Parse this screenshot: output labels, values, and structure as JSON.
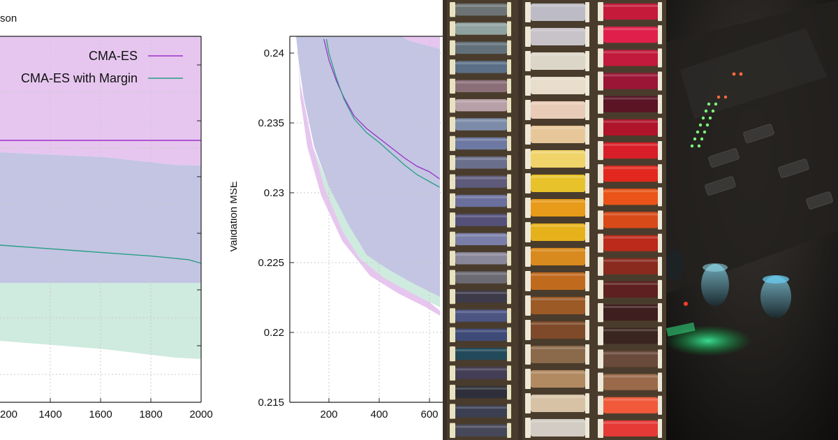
{
  "left_chart": {
    "title_fragment": "son",
    "legend": [
      {
        "label": "CMA-ES",
        "color": "#9b30c8"
      },
      {
        "label": "CMA-ES with Margin",
        "color": "#2a9d84"
      }
    ],
    "x_tick_labels": [
      "200",
      "1400",
      "1600",
      "1800",
      "2000"
    ],
    "colors": {
      "cma_band": "#e6c6ef",
      "margin_band": "#cfeadf",
      "overlap_band": "#c3c5e3"
    }
  },
  "mid_chart": {
    "y_axis_label": "Validation MSE",
    "y_tick_labels": [
      "0.24",
      "0.235",
      "0.23",
      "0.225",
      "0.22",
      "0.215"
    ],
    "x_tick_labels": [
      "200",
      "400",
      "600"
    ]
  },
  "chart_data": [
    {
      "type": "area",
      "title": "",
      "xlabel": "",
      "ylabel": "",
      "xlim": [
        1150,
        2000
      ],
      "series": [
        {
          "name": "CMA-ES",
          "x": [
            1150,
            2000
          ],
          "y": [
            0.2337,
            0.2337
          ]
        },
        {
          "name": "CMA-ES with Margin",
          "x": [
            1150,
            1400,
            1600,
            1800,
            1950,
            2000
          ],
          "y": [
            0.2265,
            0.2262,
            0.2259,
            0.2255,
            0.2251,
            0.225
          ]
        }
      ],
      "legend": "top-right",
      "grid": true
    },
    {
      "type": "area",
      "title": "",
      "xlabel": "",
      "ylabel": "Validation MSE",
      "ylim": [
        0.215,
        0.241
      ],
      "xlim": [
        50,
        640
      ],
      "series": [
        {
          "name": "CMA-ES",
          "x": [
            180,
            200,
            230,
            260,
            300,
            350,
            400,
            450,
            500,
            550,
            600,
            640
          ],
          "y": [
            0.241,
            0.2395,
            0.238,
            0.2368,
            0.2355,
            0.2346,
            0.2339,
            0.2332,
            0.2325,
            0.2319,
            0.2315,
            0.231
          ]
        },
        {
          "name": "CMA-ES with Margin",
          "x": [
            190,
            200,
            230,
            260,
            300,
            350,
            400,
            450,
            500,
            550,
            600,
            640
          ],
          "y": [
            0.241,
            0.24,
            0.2382,
            0.2367,
            0.2353,
            0.2343,
            0.2336,
            0.2328,
            0.232,
            0.2313,
            0.2308,
            0.2304
          ]
        }
      ],
      "grid": true
    }
  ]
}
